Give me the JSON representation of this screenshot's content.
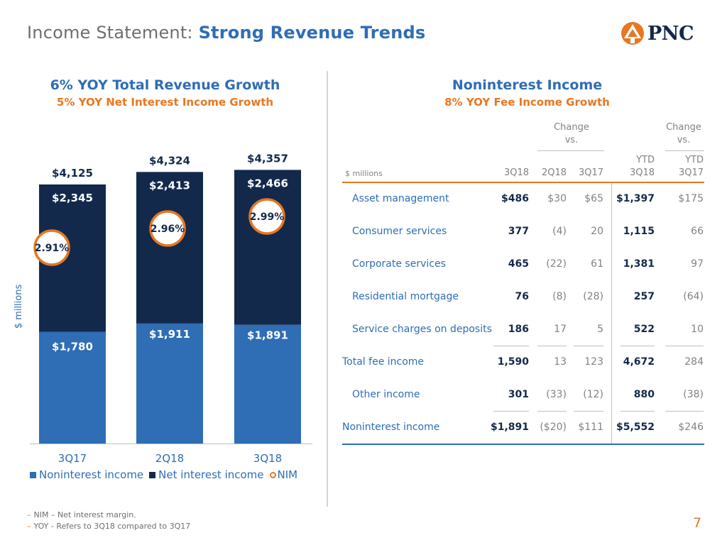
{
  "title": {
    "plain": "Income Statement: ",
    "bold": "Strong Revenue Trends"
  },
  "logo": {
    "text": "PNC"
  },
  "left": {
    "heading1": "6% YOY Total Revenue Growth",
    "heading2": "5% YOY Net Interest Income Growth"
  },
  "right": {
    "heading1": "Noninterest Income",
    "heading2": "8% YOY Fee Income Growth"
  },
  "chart_data": {
    "type": "bar",
    "stacked": true,
    "categories": [
      "3Q17",
      "2Q18",
      "3Q18"
    ],
    "ylabel": "$ millions",
    "ylim": [
      0,
      4800
    ],
    "series": [
      {
        "name": "Noninterest income",
        "values": [
          1780,
          1911,
          1891
        ],
        "labels": [
          "$1,780",
          "$1,911",
          "$1,891"
        ],
        "color": "#2f6db5"
      },
      {
        "name": "Net interest income",
        "values": [
          2345,
          2413,
          2466
        ],
        "labels": [
          "$2,345",
          "$2,413",
          "$2,466"
        ],
        "color": "#13294b"
      }
    ],
    "totals": [
      "$4,125",
      "$4,324",
      "$4,357"
    ],
    "nim": {
      "name": "NIM",
      "values": [
        "2.91%",
        "2.96%",
        "2.99%"
      ],
      "color": "#e87722"
    },
    "legend": "bottom-left"
  },
  "table": {
    "units": "$ millions",
    "group_headers": [
      "Change",
      "vs.",
      "Change",
      "vs."
    ],
    "columns": [
      "3Q18",
      "2Q18",
      "3Q17",
      "YTD\n3Q18",
      "YTD\n3Q17"
    ],
    "ytd_top": [
      "YTD",
      "YTD"
    ],
    "ytd_bottom": [
      "3Q18",
      "3Q17"
    ],
    "rows": [
      {
        "label": "Asset management",
        "values": [
          "$486",
          "$30",
          "$65",
          "$1,397",
          "$175"
        ]
      },
      {
        "label": "Consumer services",
        "values": [
          "377",
          "(4)",
          "20",
          "1,115",
          "66"
        ]
      },
      {
        "label": "Corporate services",
        "values": [
          "465",
          "(22)",
          "61",
          "1,381",
          "97"
        ]
      },
      {
        "label": "Residential mortgage",
        "values": [
          "76",
          "(8)",
          "(28)",
          "257",
          "(64)"
        ]
      },
      {
        "label": "Service charges on deposits",
        "values": [
          "186",
          "17",
          "5",
          "522",
          "10"
        ]
      },
      {
        "label": "Total fee income",
        "values": [
          "1,590",
          "13",
          "123",
          "4,672",
          "284"
        ]
      },
      {
        "label": "Other income",
        "values": [
          "301",
          "(33)",
          "(12)",
          "880",
          "(38)"
        ]
      },
      {
        "label": "Noninterest income",
        "values": [
          "$1,891",
          "($20)",
          "$111",
          "$5,552",
          "$246"
        ]
      }
    ]
  },
  "notes": [
    "NIM – Net interest margin.",
    "YOY - Refers to 3Q18 compared to 3Q17"
  ],
  "page_number": "7"
}
